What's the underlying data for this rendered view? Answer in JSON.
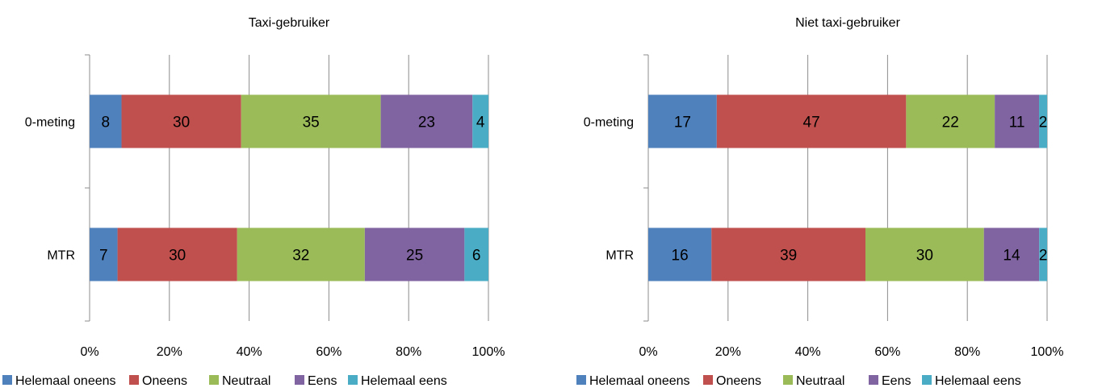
{
  "legend_labels": [
    "Helemaal oneens",
    "Oneens",
    "Neutraal",
    "Eens",
    "Helemaal eens"
  ],
  "series_colors": [
    "#4f81bd",
    "#c0504d",
    "#9bbb59",
    "#8064a2",
    "#4bacc6"
  ],
  "chart_data": [
    {
      "type": "bar",
      "orientation": "horizontal",
      "stacking": "percent",
      "title": "Taxi-gebruiker",
      "categories": [
        "0-meting",
        "MTR"
      ],
      "x_ticks": [
        "0%",
        "20%",
        "40%",
        "60%",
        "80%",
        "100%"
      ],
      "xlim": [
        0,
        100
      ],
      "grid": true,
      "legend_position": "bottom",
      "series": [
        {
          "name": "Helemaal oneens",
          "values": [
            8,
            7
          ]
        },
        {
          "name": "Oneens",
          "values": [
            30,
            30
          ]
        },
        {
          "name": "Neutraal",
          "values": [
            35,
            32
          ]
        },
        {
          "name": "Eens",
          "values": [
            23,
            25
          ]
        },
        {
          "name": "Helemaal eens",
          "values": [
            4,
            6
          ]
        }
      ]
    },
    {
      "type": "bar",
      "orientation": "horizontal",
      "stacking": "percent",
      "title": "Niet taxi-gebruiker",
      "categories": [
        "0-meting",
        "MTR"
      ],
      "x_ticks": [
        "0%",
        "20%",
        "40%",
        "60%",
        "80%",
        "100%"
      ],
      "xlim": [
        0,
        100
      ],
      "grid": true,
      "legend_position": "bottom",
      "series": [
        {
          "name": "Helemaal oneens",
          "values": [
            17,
            16
          ]
        },
        {
          "name": "Oneens",
          "values": [
            47,
            39
          ]
        },
        {
          "name": "Neutraal",
          "values": [
            22,
            30
          ]
        },
        {
          "name": "Eens",
          "values": [
            11,
            14
          ]
        },
        {
          "name": "Helemaal eens",
          "values": [
            2,
            2
          ]
        }
      ]
    }
  ]
}
